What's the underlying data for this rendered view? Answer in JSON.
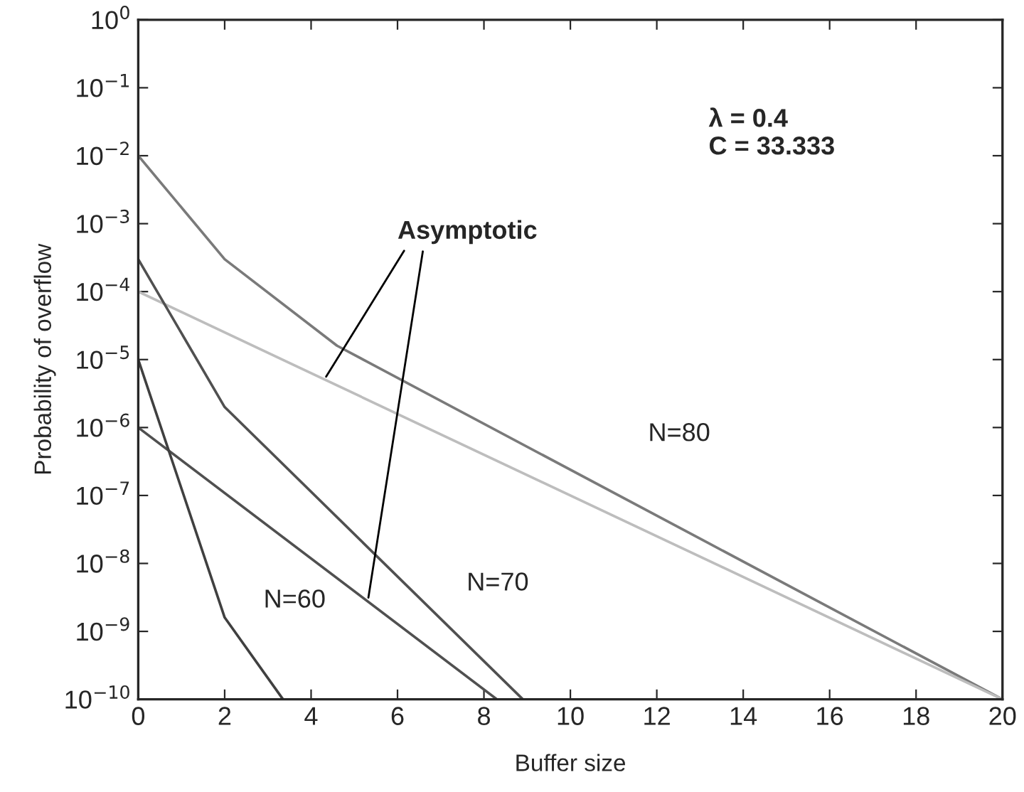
{
  "chart_data": {
    "type": "line",
    "xlabel": "Buffer size",
    "ylabel": "Probability of overflow",
    "series": [
      {
        "color": "#7a7a7a",
        "x": [
          0,
          2,
          4.6,
          20
        ],
        "values": [
          0.01,
          0.0003,
          1.6e-05,
          1e-10
        ]
      },
      {
        "color": "#bdbdbd",
        "x": [
          0,
          20
        ],
        "values": [
          0.0001,
          1e-10
        ]
      },
      {
        "color": "#505050",
        "x": [
          0,
          2,
          8.9
        ],
        "values": [
          0.0003,
          2e-06,
          1e-10
        ]
      },
      {
        "color": "#505050",
        "x": [
          0,
          8.3
        ],
        "values": [
          1e-06,
          1e-10
        ]
      },
      {
        "color": "#404040",
        "x": [
          0,
          2,
          3.35
        ],
        "values": [
          1e-05,
          1.6e-09,
          1e-10
        ]
      }
    ],
    "log": "y",
    "xlim": [
      0,
      20
    ],
    "xticks": [
      0,
      2,
      4,
      6,
      8,
      10,
      12,
      14,
      16,
      18,
      20
    ],
    "ylim": [
      1e-10,
      1
    ],
    "yticks": [
      {
        "value": 1e-10,
        "label": "10$^{−10}$"
      },
      {
        "value": 1e-09,
        "label": "10$^{−9}$"
      },
      {
        "value": 1e-08,
        "label": "10$^{−8}$"
      },
      {
        "value": 1e-07,
        "label": "10$^{−7}$"
      },
      {
        "value": 1e-06,
        "label": "10$^{−6}$"
      },
      {
        "value": 1e-05,
        "label": "10$^{−5}$"
      },
      {
        "value": 0.0001,
        "label": "10$^{−4}$"
      },
      {
        "value": 0.001,
        "label": "10$^{−3}$"
      },
      {
        "value": 0.01,
        "label": "10$^{−2}$"
      },
      {
        "value": 0.1,
        "label": "10$^{−1}$"
      },
      {
        "value": 1,
        "label": "10$^{0}$"
      }
    ],
    "grid": false,
    "marker": "none",
    "line_style": "solid",
    "annotations": [
      {
        "text": "Asymptotic",
        "x": 4.3,
        "y": 5e-06
      },
      "N=80",
      "N=70",
      "N=60",
      "λ = 0.4\nC = 33.333"
    ]
  }
}
